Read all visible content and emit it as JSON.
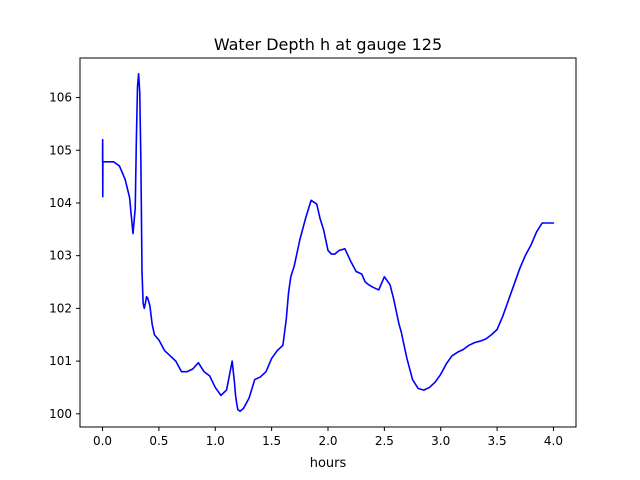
{
  "chart_data": {
    "type": "line",
    "title": "Water Depth h at gauge 125",
    "xlabel": "hours",
    "ylabel": "",
    "xlim": [
      -0.2,
      4.2
    ],
    "ylim": [
      99.75,
      106.75
    ],
    "xticks": [
      0.0,
      0.5,
      1.0,
      1.5,
      2.0,
      2.5,
      3.0,
      3.5,
      4.0
    ],
    "xtick_labels": [
      "0.0",
      "0.5",
      "1.0",
      "1.5",
      "2.0",
      "2.5",
      "3.0",
      "3.5",
      "4.0"
    ],
    "yticks": [
      100,
      101,
      102,
      103,
      104,
      105,
      106
    ],
    "ytick_labels": [
      "100",
      "101",
      "102",
      "103",
      "104",
      "105",
      "106"
    ],
    "grid": false,
    "series": [
      {
        "color": "#0000ff",
        "x": [
          0.0,
          0.001,
          0.002,
          0.003,
          0.005,
          0.1,
          0.15,
          0.2,
          0.24,
          0.27,
          0.29,
          0.3,
          0.31,
          0.32,
          0.33,
          0.34,
          0.35,
          0.36,
          0.37,
          0.38,
          0.39,
          0.4,
          0.42,
          0.44,
          0.46,
          0.48,
          0.5,
          0.55,
          0.6,
          0.65,
          0.7,
          0.75,
          0.8,
          0.85,
          0.9,
          0.95,
          1.0,
          1.05,
          1.1,
          1.15,
          1.17,
          1.18,
          1.19,
          1.2,
          1.22,
          1.25,
          1.3,
          1.35,
          1.4,
          1.45,
          1.5,
          1.55,
          1.6,
          1.63,
          1.65,
          1.67,
          1.7,
          1.72,
          1.75,
          1.8,
          1.85,
          1.9,
          1.93,
          1.96,
          2.0,
          2.03,
          2.06,
          2.1,
          2.15,
          2.2,
          2.25,
          2.3,
          2.33,
          2.36,
          2.4,
          2.45,
          2.5,
          2.55,
          2.58,
          2.6,
          2.63,
          2.65,
          2.7,
          2.75,
          2.8,
          2.85,
          2.9,
          2.95,
          3.0,
          3.05,
          3.1,
          3.15,
          3.2,
          3.25,
          3.3,
          3.35,
          3.4,
          3.45,
          3.5,
          3.55,
          3.6,
          3.65,
          3.7,
          3.75,
          3.8,
          3.85,
          3.9,
          3.95,
          4.0
        ],
        "y": [
          104.78,
          105.2,
          104.12,
          104.78,
          104.78,
          104.78,
          104.7,
          104.45,
          104.1,
          103.42,
          103.9,
          105.2,
          106.2,
          106.45,
          106.1,
          104.8,
          102.7,
          102.1,
          102.0,
          102.1,
          102.22,
          102.2,
          102.05,
          101.7,
          101.5,
          101.45,
          101.4,
          101.2,
          101.1,
          101.0,
          100.8,
          100.8,
          100.85,
          100.97,
          100.8,
          100.72,
          100.5,
          100.35,
          100.45,
          101.0,
          100.6,
          100.35,
          100.2,
          100.08,
          100.05,
          100.1,
          100.3,
          100.65,
          100.7,
          100.8,
          101.05,
          101.2,
          101.3,
          101.8,
          102.3,
          102.6,
          102.8,
          103.0,
          103.3,
          103.7,
          104.05,
          103.98,
          103.7,
          103.5,
          103.1,
          103.03,
          103.03,
          103.1,
          103.13,
          102.9,
          102.7,
          102.65,
          102.5,
          102.45,
          102.4,
          102.35,
          102.6,
          102.45,
          102.2,
          102.0,
          101.7,
          101.55,
          101.05,
          100.65,
          100.48,
          100.45,
          100.5,
          100.6,
          100.75,
          100.95,
          101.1,
          101.17,
          101.22,
          101.3,
          101.35,
          101.38,
          101.42,
          101.5,
          101.6,
          101.85,
          102.15,
          102.45,
          102.75,
          103.0,
          103.2,
          103.45,
          103.62,
          103.62,
          103.62
        ]
      }
    ]
  }
}
